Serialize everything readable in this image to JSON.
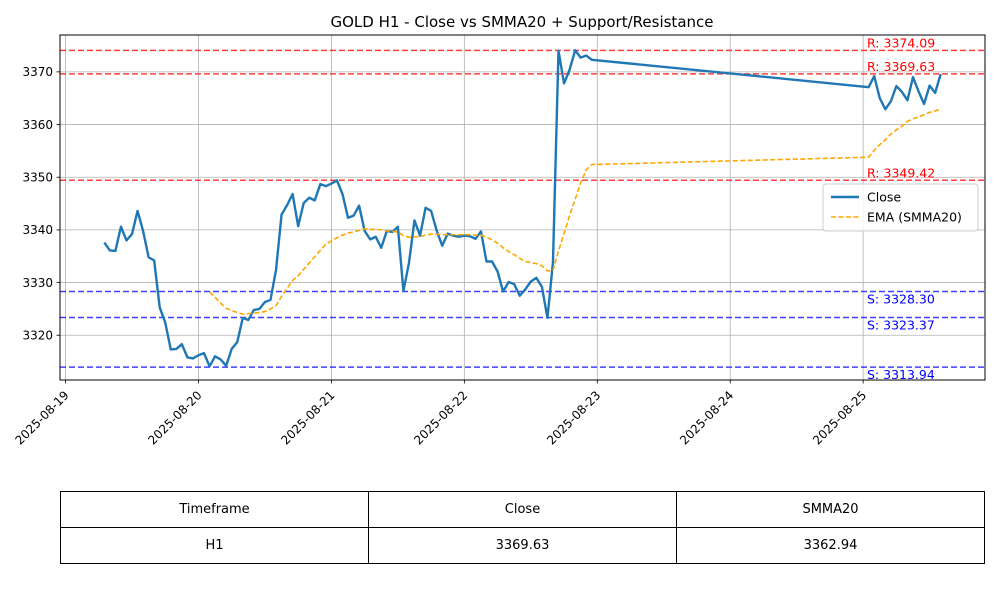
{
  "chart_data": {
    "type": "line",
    "title": "GOLD H1 - Close vs SMMA20 + Support/Resistance",
    "xlabel": "",
    "ylabel": "",
    "x_tick_labels": [
      "2025-08-19",
      "2025-08-20",
      "2025-08-21",
      "2025-08-22",
      "2025-08-23",
      "2025-08-24",
      "2025-08-25"
    ],
    "y_ticks": [
      3320,
      3330,
      3340,
      3350,
      3360,
      3370
    ],
    "xlim": [
      "2025-08-18 23:00",
      "2025-08-25 22:00"
    ],
    "ylim": [
      3311.5,
      3377
    ],
    "grid": true,
    "legend_position": "right",
    "series": [
      {
        "name": "Close",
        "color": "#1f77b4",
        "style": "solid",
        "points": [
          [
            "2025-08-19 07:00",
            3337.6
          ],
          [
            "2025-08-19 08:00",
            3336.1
          ],
          [
            "2025-08-19 09:00",
            3336.0
          ],
          [
            "2025-08-19 10:00",
            3340.6
          ],
          [
            "2025-08-19 11:00",
            3338.0
          ],
          [
            "2025-08-19 12:00",
            3339.2
          ],
          [
            "2025-08-19 13:00",
            3343.6
          ],
          [
            "2025-08-19 14:00",
            3339.8
          ],
          [
            "2025-08-19 15:00",
            3334.8
          ],
          [
            "2025-08-19 16:00",
            3334.2
          ],
          [
            "2025-08-19 17:00",
            3325.3
          ],
          [
            "2025-08-19 18:00",
            3322.4
          ],
          [
            "2025-08-19 19:00",
            3317.3
          ],
          [
            "2025-08-19 20:00",
            3317.4
          ],
          [
            "2025-08-19 21:00",
            3318.3
          ],
          [
            "2025-08-19 22:00",
            3315.8
          ],
          [
            "2025-08-19 23:00",
            3315.6
          ],
          [
            "2025-08-20 00:00",
            3316.2
          ],
          [
            "2025-08-20 01:00",
            3316.6
          ],
          [
            "2025-08-20 02:00",
            3314.1
          ],
          [
            "2025-08-20 03:00",
            3316.0
          ],
          [
            "2025-08-20 04:00",
            3315.4
          ],
          [
            "2025-08-20 05:00",
            3314.2
          ],
          [
            "2025-08-20 06:00",
            3317.4
          ],
          [
            "2025-08-20 07:00",
            3318.7
          ],
          [
            "2025-08-20 08:00",
            3323.3
          ],
          [
            "2025-08-20 09:00",
            3322.9
          ],
          [
            "2025-08-20 10:00",
            3324.8
          ],
          [
            "2025-08-20 11:00",
            3325.0
          ],
          [
            "2025-08-20 12:00",
            3326.3
          ],
          [
            "2025-08-20 13:00",
            3326.7
          ],
          [
            "2025-08-20 14:00",
            3332.4
          ],
          [
            "2025-08-20 15:00",
            3342.9
          ],
          [
            "2025-08-20 16:00",
            3344.7
          ],
          [
            "2025-08-20 17:00",
            3346.8
          ],
          [
            "2025-08-20 18:00",
            3340.7
          ],
          [
            "2025-08-20 19:00",
            3345.1
          ],
          [
            "2025-08-20 20:00",
            3346.1
          ],
          [
            "2025-08-20 21:00",
            3345.6
          ],
          [
            "2025-08-20 22:00",
            3348.7
          ],
          [
            "2025-08-20 23:00",
            3348.3
          ],
          [
            "2025-08-21 00:00",
            3348.8
          ],
          [
            "2025-08-21 01:00",
            3349.4
          ],
          [
            "2025-08-21 02:00",
            3346.8
          ],
          [
            "2025-08-21 03:00",
            3342.3
          ],
          [
            "2025-08-21 04:00",
            3342.7
          ],
          [
            "2025-08-21 05:00",
            3344.6
          ],
          [
            "2025-08-21 06:00",
            3339.8
          ],
          [
            "2025-08-21 07:00",
            3338.2
          ],
          [
            "2025-08-21 08:00",
            3338.7
          ],
          [
            "2025-08-21 09:00",
            3336.6
          ],
          [
            "2025-08-21 10:00",
            3339.8
          ],
          [
            "2025-08-21 11:00",
            3339.6
          ],
          [
            "2025-08-21 12:00",
            3340.6
          ],
          [
            "2025-08-21 13:00",
            3328.4
          ],
          [
            "2025-08-21 14:00",
            3333.7
          ],
          [
            "2025-08-21 15:00",
            3341.8
          ],
          [
            "2025-08-21 16:00",
            3338.9
          ],
          [
            "2025-08-21 17:00",
            3344.2
          ],
          [
            "2025-08-21 18:00",
            3343.6
          ],
          [
            "2025-08-21 19:00",
            3339.9
          ],
          [
            "2025-08-21 20:00",
            3337.0
          ],
          [
            "2025-08-21 21:00",
            3339.3
          ],
          [
            "2025-08-21 22:00",
            3338.9
          ],
          [
            "2025-08-21 23:00",
            3338.7
          ],
          [
            "2025-08-22 00:00",
            3338.9
          ],
          [
            "2025-08-22 01:00",
            3338.8
          ],
          [
            "2025-08-22 02:00",
            3338.3
          ],
          [
            "2025-08-22 03:00",
            3339.7
          ],
          [
            "2025-08-22 04:00",
            3334.0
          ],
          [
            "2025-08-22 05:00",
            3334.0
          ],
          [
            "2025-08-22 06:00",
            3332.1
          ],
          [
            "2025-08-22 07:00",
            3328.3
          ],
          [
            "2025-08-22 08:00",
            3330.1
          ],
          [
            "2025-08-22 09:00",
            3329.7
          ],
          [
            "2025-08-22 10:00",
            3327.5
          ],
          [
            "2025-08-22 11:00",
            3328.7
          ],
          [
            "2025-08-22 12:00",
            3330.2
          ],
          [
            "2025-08-22 13:00",
            3330.9
          ],
          [
            "2025-08-22 14:00",
            3329.2
          ],
          [
            "2025-08-22 15:00",
            3323.3
          ],
          [
            "2025-08-22 16:00",
            3333.8
          ],
          [
            "2025-08-22 17:00",
            3374.0
          ],
          [
            "2025-08-22 18:00",
            3367.8
          ],
          [
            "2025-08-22 19:00",
            3370.4
          ],
          [
            "2025-08-22 20:00",
            3374.1
          ],
          [
            "2025-08-22 21:00",
            3372.7
          ],
          [
            "2025-08-22 22:00",
            3373.1
          ],
          [
            "2025-08-22 23:00",
            3372.3
          ],
          [
            "2025-08-25 01:00",
            3367.1
          ],
          [
            "2025-08-25 02:00",
            3369.2
          ],
          [
            "2025-08-25 03:00",
            3365.0
          ],
          [
            "2025-08-25 04:00",
            3362.9
          ],
          [
            "2025-08-25 05:00",
            3364.4
          ],
          [
            "2025-08-25 06:00",
            3367.3
          ],
          [
            "2025-08-25 07:00",
            3366.2
          ],
          [
            "2025-08-25 08:00",
            3364.6
          ],
          [
            "2025-08-25 09:00",
            3369.0
          ],
          [
            "2025-08-25 10:00",
            3366.3
          ],
          [
            "2025-08-25 11:00",
            3363.9
          ],
          [
            "2025-08-25 12:00",
            3367.4
          ],
          [
            "2025-08-25 13:00",
            3366.0
          ],
          [
            "2025-08-25 14:00",
            3369.6
          ]
        ]
      },
      {
        "name": "EMA (SMMA20)",
        "color": "#ffa500",
        "style": "dashed",
        "points": [
          [
            "2025-08-20 02:00",
            3328.2
          ],
          [
            "2025-08-20 03:00",
            3327.2
          ],
          [
            "2025-08-20 04:00",
            3326.1
          ],
          [
            "2025-08-20 05:00",
            3325.1
          ],
          [
            "2025-08-20 06:00",
            3324.7
          ],
          [
            "2025-08-20 07:00",
            3324.3
          ],
          [
            "2025-08-20 08:00",
            3324.0
          ],
          [
            "2025-08-20 09:00",
            3324.1
          ],
          [
            "2025-08-20 10:00",
            3324.2
          ],
          [
            "2025-08-20 11:00",
            3324.3
          ],
          [
            "2025-08-20 12:00",
            3324.5
          ],
          [
            "2025-08-20 13:00",
            3325.0
          ],
          [
            "2025-08-20 14:00",
            3325.6
          ],
          [
            "2025-08-20 15:00",
            3327.4
          ],
          [
            "2025-08-20 16:00",
            3328.9
          ],
          [
            "2025-08-20 17:00",
            3330.4
          ],
          [
            "2025-08-20 18:00",
            3331.3
          ],
          [
            "2025-08-20 19:00",
            3332.5
          ],
          [
            "2025-08-20 20:00",
            3333.7
          ],
          [
            "2025-08-20 21:00",
            3334.9
          ],
          [
            "2025-08-20 22:00",
            3336.1
          ],
          [
            "2025-08-20 23:00",
            3337.3
          ],
          [
            "2025-08-21 00:00",
            3337.9
          ],
          [
            "2025-08-21 01:00",
            3338.5
          ],
          [
            "2025-08-21 02:00",
            3339.0
          ],
          [
            "2025-08-21 03:00",
            3339.4
          ],
          [
            "2025-08-21 04:00",
            3339.6
          ],
          [
            "2025-08-21 05:00",
            3339.9
          ],
          [
            "2025-08-21 06:00",
            3340.2
          ],
          [
            "2025-08-21 07:00",
            3340.1
          ],
          [
            "2025-08-21 08:00",
            3340.1
          ],
          [
            "2025-08-21 09:00",
            3340.0
          ],
          [
            "2025-08-21 10:00",
            3339.8
          ],
          [
            "2025-08-21 11:00",
            3339.7
          ],
          [
            "2025-08-21 12:00",
            3339.6
          ],
          [
            "2025-08-21 13:00",
            3338.9
          ],
          [
            "2025-08-21 14:00",
            3338.6
          ],
          [
            "2025-08-21 15:00",
            3338.7
          ],
          [
            "2025-08-21 16:00",
            3338.7
          ],
          [
            "2025-08-21 17:00",
            3339.0
          ],
          [
            "2025-08-21 18:00",
            3339.2
          ],
          [
            "2025-08-21 19:00",
            3339.2
          ],
          [
            "2025-08-21 20:00",
            3339.1
          ],
          [
            "2025-08-21 21:00",
            3339.1
          ],
          [
            "2025-08-21 22:00",
            3339.1
          ],
          [
            "2025-08-21 23:00",
            3339.1
          ],
          [
            "2025-08-22 00:00",
            3339.1
          ],
          [
            "2025-08-22 01:00",
            3339.1
          ],
          [
            "2025-08-22 02:00",
            3339.0
          ],
          [
            "2025-08-22 03:00",
            3339.0
          ],
          [
            "2025-08-22 04:00",
            3338.6
          ],
          [
            "2025-08-22 05:00",
            3338.1
          ],
          [
            "2025-08-22 06:00",
            3337.5
          ],
          [
            "2025-08-22 07:00",
            3336.6
          ],
          [
            "2025-08-22 08:00",
            3335.9
          ],
          [
            "2025-08-22 09:00",
            3335.3
          ],
          [
            "2025-08-22 10:00",
            3334.6
          ],
          [
            "2025-08-22 11:00",
            3334.0
          ],
          [
            "2025-08-22 12:00",
            3333.8
          ],
          [
            "2025-08-22 13:00",
            3333.6
          ],
          [
            "2025-08-22 14:00",
            3333.2
          ],
          [
            "2025-08-22 15:00",
            3332.2
          ],
          [
            "2025-08-22 16:00",
            3332.3
          ],
          [
            "2025-08-22 17:00",
            3336.0
          ],
          [
            "2025-08-22 18:00",
            3339.3
          ],
          [
            "2025-08-22 19:00",
            3342.7
          ],
          [
            "2025-08-22 20:00",
            3345.8
          ],
          [
            "2025-08-22 21:00",
            3348.9
          ],
          [
            "2025-08-22 22:00",
            3351.4
          ],
          [
            "2025-08-22 23:00",
            3352.4
          ],
          [
            "2025-08-25 01:00",
            3353.8
          ],
          [
            "2025-08-25 02:00",
            3355.1
          ],
          [
            "2025-08-25 03:00",
            3356.2
          ],
          [
            "2025-08-25 04:00",
            3357.1
          ],
          [
            "2025-08-25 05:00",
            3358.2
          ],
          [
            "2025-08-25 06:00",
            3359.0
          ],
          [
            "2025-08-25 07:00",
            3359.7
          ],
          [
            "2025-08-25 08:00",
            3360.6
          ],
          [
            "2025-08-25 09:00",
            3361.1
          ],
          [
            "2025-08-25 10:00",
            3361.4
          ],
          [
            "2025-08-25 11:00",
            3361.9
          ],
          [
            "2025-08-25 12:00",
            3362.3
          ],
          [
            "2025-08-25 13:00",
            3362.6
          ],
          [
            "2025-08-25 14:00",
            3362.9
          ]
        ]
      }
    ],
    "resistance_levels": [
      {
        "label": "R: 3374.09",
        "value": 3374.09
      },
      {
        "label": "R: 3369.63",
        "value": 3369.63
      },
      {
        "label": "R: 3349.42",
        "value": 3349.42
      }
    ],
    "support_levels": [
      {
        "label": "S: 3328.30",
        "value": 3328.3
      },
      {
        "label": "S: 3323.37",
        "value": 3323.37
      },
      {
        "label": "S: 3313.94",
        "value": 3313.94
      }
    ],
    "resistance_color": "#ff0000",
    "support_color": "#0000ff"
  },
  "table": {
    "headers": [
      "Timeframe",
      "Close",
      "SMMA20"
    ],
    "row": [
      "H1",
      "3369.63",
      "3362.94"
    ]
  }
}
